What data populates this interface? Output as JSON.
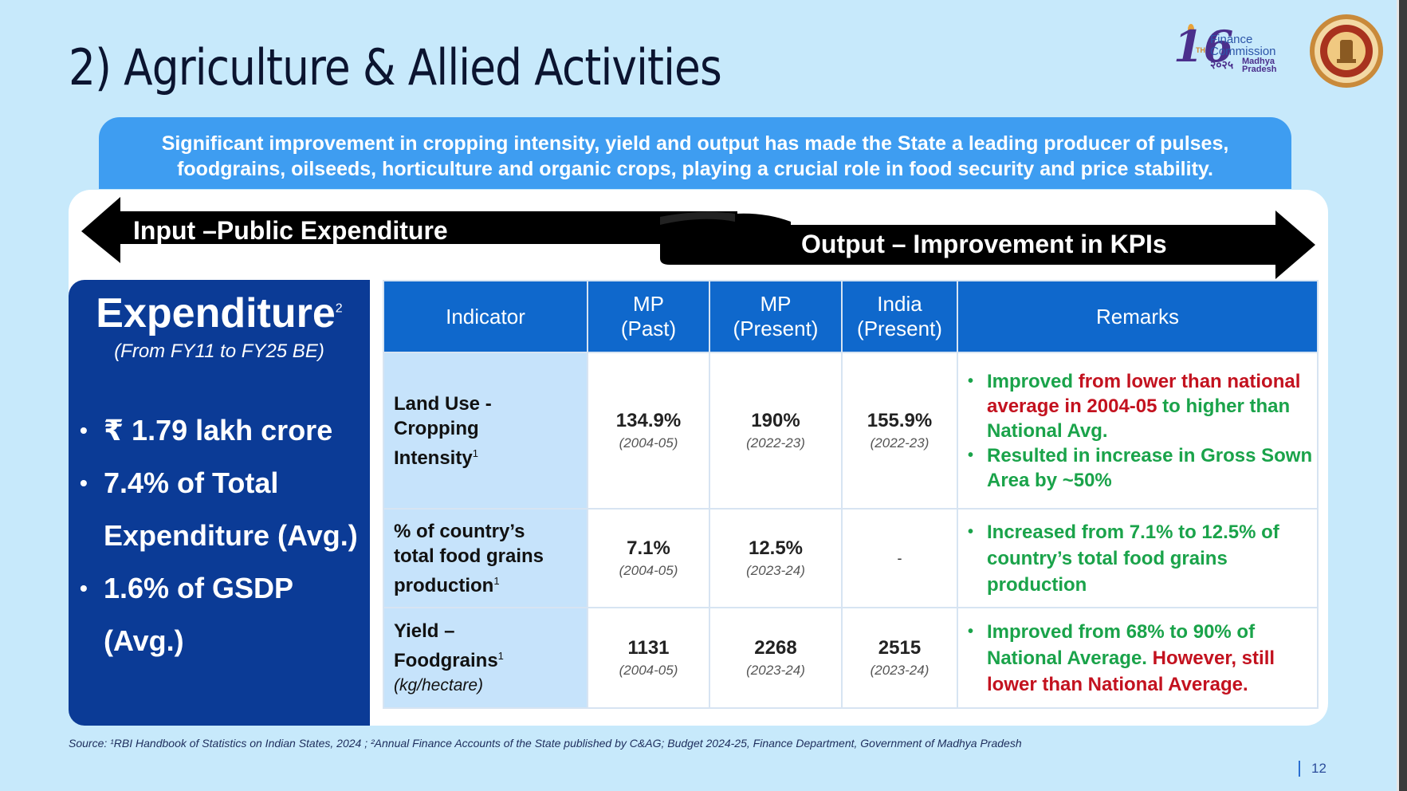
{
  "slide": {
    "title": "2) Agriculture & Allied Activities",
    "page_number": "12",
    "source": "Source: ¹RBI Handbook of Statistics on Indian States, 2024 ; ²Annual Finance Accounts of the State published by C&AG; Budget 2024-25, Finance Department, Government of Madhya Pradesh"
  },
  "logo": {
    "number": "16",
    "suffix": "TH",
    "line1": "Finance",
    "line2": "Commission",
    "year": "२०२५",
    "place1": "Madhya",
    "place2": "Pradesh"
  },
  "banner": {
    "line1": "Significant improvement in cropping intensity, yield and output has made the State a leading producer of pulses,",
    "line2": "foodgrains, oilseeds, horticulture and organic crops, playing a crucial role in food security and price stability."
  },
  "arrows": {
    "input_label": "Input –Public Expenditure",
    "output_label": "Output – Improvement in KPIs"
  },
  "expenditure": {
    "title": "Expenditure",
    "footnote": "2",
    "period": "(From FY11 to FY25 BE)",
    "bullets": [
      "₹ 1.79 lakh crore",
      "7.4% of Total",
      "Expenditure (Avg.)",
      "1.6% of GSDP",
      "(Avg.)"
    ]
  },
  "table": {
    "headers": {
      "indicator": "Indicator",
      "mp_past_1": "MP",
      "mp_past_2": "(Past)",
      "mp_present_1": "MP",
      "mp_present_2": "(Present)",
      "india_present_1": "India",
      "india_present_2": "(Present)",
      "remarks": "Remarks"
    },
    "rows": [
      {
        "ind1": "Land Use -",
        "ind2": "Cropping",
        "ind3": "Intensity",
        "fn": "1",
        "mp_past": "134.9%",
        "mp_past_year": "(2004-05)",
        "mp_present": "190%",
        "mp_present_year": "(2022-23)",
        "india": "155.9%",
        "india_year": "(2022-23)",
        "r1a": "Improved ",
        "r1b": "from lower than national average in 2004-05",
        "r1c": " to higher than National Avg.",
        "r2": "Resulted in increase in Gross Sown Area by ~50%"
      },
      {
        "ind1": "% of country’s",
        "ind2": "total food grains",
        "ind3": "production",
        "fn": "1",
        "mp_past": "7.1%",
        "mp_past_year": "(2004-05)",
        "mp_present": "12.5%",
        "mp_present_year": "(2023-24)",
        "india": "-",
        "r1": "Increased from 7.1% to 12.5% of country’s total food grains production"
      },
      {
        "ind1": "Yield –",
        "ind2": "Foodgrains",
        "fn": "1",
        "unit": "(kg/hectare)",
        "mp_past": "1131",
        "mp_past_year": "(2004-05)",
        "mp_present": "2268",
        "mp_present_year": "(2023-24)",
        "india": "2515",
        "india_year": "(2023-24)",
        "r1a": "Improved from 68% to 90% of National Average. ",
        "r1b": "However, still lower than National Average."
      }
    ]
  }
}
